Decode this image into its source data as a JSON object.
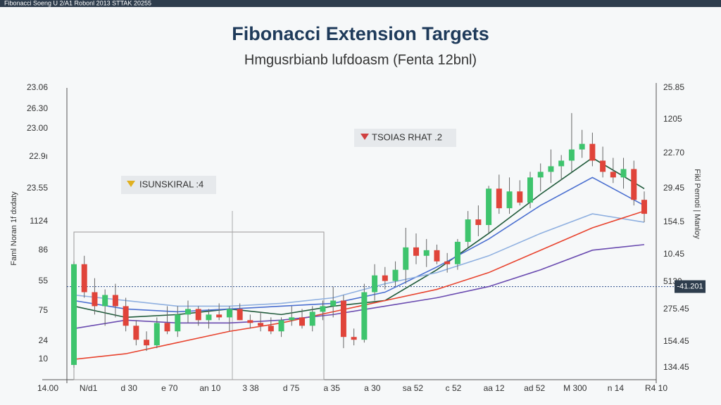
{
  "chart_data": {
    "type": "candlestick",
    "header": "Fibonacci  Soeng U 2/A1 Robonl 2013   STTAK 20255",
    "title": "Fibonacci Extension Targets",
    "subtitle": "Hmgusrbianb lufdoasm (Fenta 12bnl)",
    "ylabel": "Faml Noran 1f dxdaty",
    "y2label": "Fikl Pernoti | Manloy",
    "left_axis_labels": [
      "23.06",
      "26.30",
      "23.00",
      "22.9ı",
      "23.55",
      "1124",
      "86",
      "55",
      "75",
      "24",
      "10"
    ],
    "right_axis_labels": [
      "25.85",
      "1205",
      "22.70",
      "29.45",
      "154.5",
      "10.45",
      "5130",
      "275.45",
      "154.45",
      "134.45"
    ],
    "x_axis_labels": [
      "14.00",
      "N/d1",
      "d 30",
      "e 70",
      "an 10",
      "3 38",
      "d 75",
      "a 35",
      "a 30",
      "sa 52",
      "c 52",
      "aa 12",
      "ad 52",
      "M 300",
      "n 14",
      "R4 10"
    ],
    "annotations": [
      "ISUNSKIRAL :4",
      "TSOIAS RHAT .2"
    ],
    "ylim": [
      0,
      100
    ],
    "xlim": [
      0,
      55
    ],
    "candles": [
      [
        1,
        38,
        0,
        37
      ],
      [
        37,
        40,
        25,
        27
      ],
      [
        27,
        32,
        19,
        22
      ],
      [
        22,
        28,
        15,
        26
      ],
      [
        26,
        30,
        18,
        22
      ],
      [
        22,
        25,
        13,
        15
      ],
      [
        15,
        17,
        8,
        10
      ],
      [
        10,
        13,
        6,
        8
      ],
      [
        8,
        18,
        7,
        16
      ],
      [
        16,
        22,
        12,
        13
      ],
      [
        13,
        22,
        11,
        19
      ],
      [
        19,
        24,
        16,
        21
      ],
      [
        21,
        22,
        15,
        17
      ],
      [
        17,
        21,
        14,
        19
      ],
      [
        19,
        23,
        17,
        18
      ],
      [
        18,
        22,
        13,
        21
      ],
      [
        21,
        23,
        17,
        17
      ],
      [
        17,
        19,
        14,
        16
      ],
      [
        16,
        20,
        13,
        15
      ],
      [
        15,
        18,
        12,
        13
      ],
      [
        13,
        18,
        11,
        17
      ],
      [
        17,
        22,
        15,
        18
      ],
      [
        18,
        21,
        14,
        15
      ],
      [
        15,
        22,
        13,
        20
      ],
      [
        20,
        24,
        17,
        22
      ],
      [
        22,
        29,
        18,
        24
      ],
      [
        24,
        26,
        7,
        11
      ],
      [
        11,
        14,
        8,
        10
      ],
      [
        10,
        30,
        9,
        27
      ],
      [
        27,
        37,
        24,
        33
      ],
      [
        33,
        36,
        28,
        31
      ],
      [
        31,
        38,
        29,
        35
      ],
      [
        35,
        50,
        30,
        43
      ],
      [
        43,
        48,
        37,
        40
      ],
      [
        40,
        46,
        36,
        42
      ],
      [
        42,
        44,
        37,
        38
      ],
      [
        38,
        41,
        34,
        37
      ],
      [
        37,
        46,
        35,
        45
      ],
      [
        45,
        56,
        43,
        53
      ],
      [
        53,
        58,
        47,
        51
      ],
      [
        51,
        65,
        48,
        64
      ],
      [
        64,
        69,
        55,
        57
      ],
      [
        57,
        68,
        55,
        63
      ],
      [
        63,
        67,
        58,
        59
      ],
      [
        59,
        70,
        57,
        68
      ],
      [
        68,
        73,
        63,
        70
      ],
      [
        70,
        78,
        66,
        72
      ],
      [
        72,
        76,
        67,
        74
      ],
      [
        74,
        91,
        70,
        78
      ],
      [
        78,
        85,
        75,
        80
      ],
      [
        80,
        84,
        72,
        74
      ],
      [
        74,
        79,
        68,
        70
      ],
      [
        70,
        75,
        66,
        68
      ],
      [
        68,
        75,
        64,
        71
      ],
      [
        71,
        74,
        58,
        60
      ],
      [
        60,
        63,
        52,
        55
      ]
    ],
    "up_color": "#3ec46d",
    "down_color": "#e0443a",
    "line_x": [
      0,
      5,
      10,
      15,
      20,
      25,
      30,
      35,
      40,
      45,
      50,
      55
    ],
    "series": [
      {
        "color": "#1f5a3a",
        "values": [
          22,
          18,
          19,
          21,
          19,
          22,
          24,
          35,
          48,
          62,
          75,
          64
        ]
      },
      {
        "color": "#4a6fd0",
        "values": [
          24,
          21,
          20,
          21,
          22,
          23,
          27,
          36,
          46,
          58,
          68,
          58
        ]
      },
      {
        "color": "#8fb0e0",
        "values": [
          26,
          24,
          22,
          22,
          23,
          25,
          30,
          34,
          40,
          48,
          55,
          52
        ]
      },
      {
        "color": "#e8432e",
        "values": [
          3,
          5,
          9,
          13,
          16,
          20,
          24,
          28,
          34,
          42,
          50,
          56
        ]
      },
      {
        "color": "#6a4bb0",
        "values": [
          14,
          17,
          16,
          16,
          17,
          19,
          22,
          25,
          29,
          35,
          42,
          44
        ]
      }
    ],
    "hline": 29,
    "hline_label": "-41.201"
  }
}
